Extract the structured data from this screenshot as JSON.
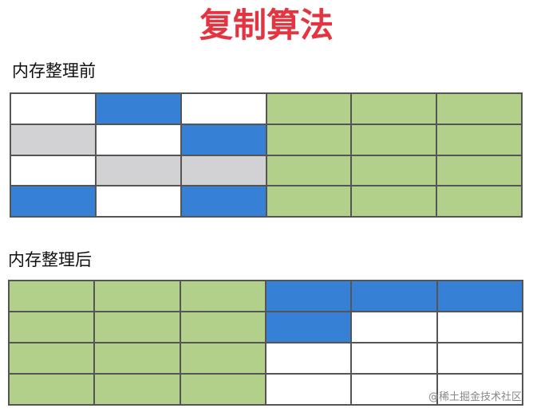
{
  "title": "复制算法",
  "colors": {
    "title": "#e3343f",
    "used": "#3680d6",
    "free": "#ffffff",
    "garbage": "#d2d1d4",
    "reserved": "#b3d08b"
  },
  "before": {
    "label": "内存整理前",
    "rows": [
      [
        "free",
        "used",
        "free",
        "reserved",
        "reserved",
        "reserved"
      ],
      [
        "garbage",
        "free",
        "used",
        "reserved",
        "reserved",
        "reserved"
      ],
      [
        "free",
        "garbage",
        "garbage",
        "reserved",
        "reserved",
        "reserved"
      ],
      [
        "used",
        "free",
        "used",
        "reserved",
        "reserved",
        "reserved"
      ]
    ]
  },
  "after": {
    "label": "内存整理后",
    "rows": [
      [
        "reserved",
        "reserved",
        "reserved",
        "used",
        "used",
        "used"
      ],
      [
        "reserved",
        "reserved",
        "reserved",
        "used",
        "free",
        "free"
      ],
      [
        "reserved",
        "reserved",
        "reserved",
        "free",
        "free",
        "free"
      ],
      [
        "reserved",
        "reserved",
        "reserved",
        "free",
        "free",
        "free"
      ]
    ]
  },
  "watermark": "@稀土掘金技术社区"
}
